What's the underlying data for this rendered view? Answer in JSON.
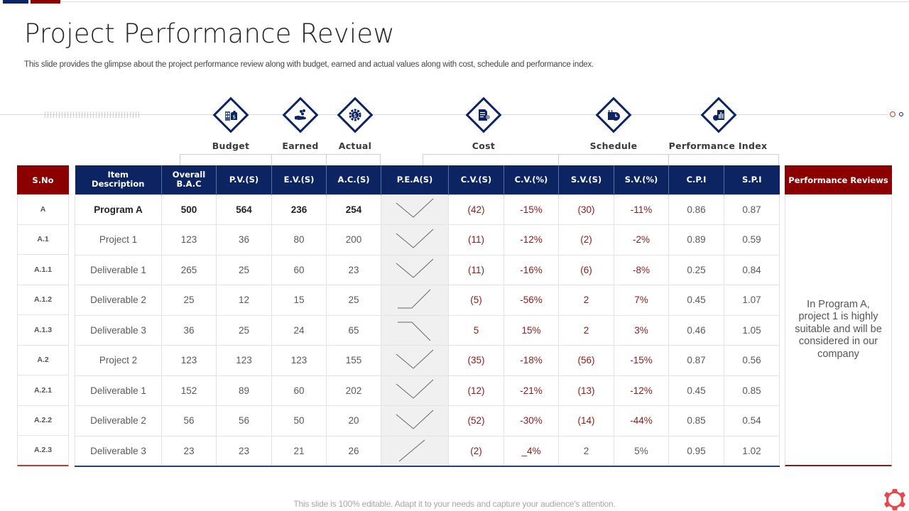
{
  "slide": {
    "title": "Project Performance Review",
    "subtitle": "This slide provides the glimpse about the project performance review along with budget, earned and actual values along with cost, schedule and performance index.",
    "footer": "This slide is 100% editable. Adapt it to your needs and capture your audience's attention."
  },
  "categories": [
    {
      "label": "Budget",
      "icon": "money-bag-building-icon"
    },
    {
      "label": "Earned",
      "icon": "hand-coins-icon"
    },
    {
      "label": "Actual",
      "icon": "dollar-gear-icon"
    },
    {
      "label": "Cost",
      "icon": "document-gear-icon"
    },
    {
      "label": "Schedule",
      "icon": "calendar-clock-icon"
    },
    {
      "label": "Performance Index",
      "icon": "chart-report-icon"
    }
  ],
  "table": {
    "sno_header": "S.No",
    "headers": [
      "Item Description",
      "Overall B.A.C",
      "P.V.(S)",
      "E.V.(S)",
      "A.C.(S)",
      "P.E.A(S)",
      "C.V.(S)",
      "C.V.(%)",
      "S.V.(S)",
      "S.V.(%)",
      "C.P.I",
      "S.P.I"
    ],
    "header_lines": {
      "item_description": [
        "Item",
        "Description"
      ],
      "overall_bac": [
        "Overall",
        "B.A.C"
      ]
    },
    "rows": [
      {
        "sno": "A",
        "item": "Program A",
        "bac": "500",
        "pv": "564",
        "ev": "236",
        "ac": "254",
        "pea_trend": "v-shape",
        "cv": "(42)",
        "cv_pct": "-15%",
        "sv": "(30)",
        "sv_pct": "-11%",
        "cpi": "0.86",
        "spi": "0.87"
      },
      {
        "sno": "A.1",
        "item": "Project 1",
        "bac": "123",
        "pv": "36",
        "ev": "80",
        "ac": "200",
        "pea_trend": "v-shape",
        "cv": "(11)",
        "cv_pct": "-12%",
        "sv": "(2)",
        "sv_pct": "-2%",
        "cpi": "0.89",
        "spi": "0.59"
      },
      {
        "sno": "A.1.1",
        "item": "Deliverable  1",
        "bac": "265",
        "pv": "25",
        "ev": "60",
        "ac": "23",
        "pea_trend": "v-shape",
        "cv": "(11)",
        "cv_pct": "-16%",
        "sv": "(6)",
        "sv_pct": "-8%",
        "cpi": "0.25",
        "spi": "0.84"
      },
      {
        "sno": "A.1.2",
        "item": "Deliverable  2",
        "bac": "25",
        "pv": "12",
        "ev": "15",
        "ac": "25",
        "pea_trend": "flat-then-up",
        "cv": "(5)",
        "cv_pct": "-56%",
        "sv": "2",
        "sv_pct": "7%",
        "cpi": "0.45",
        "spi": "1.07"
      },
      {
        "sno": "A.1.3",
        "item": "Deliverable  3",
        "bac": "36",
        "pv": "25",
        "ev": "24",
        "ac": "65",
        "pea_trend": "flat-then-down",
        "cv": "5",
        "cv_pct": "15%",
        "sv": "2",
        "sv_pct": "3%",
        "cpi": "0.46",
        "spi": "1.05"
      },
      {
        "sno": "A.2",
        "item": "Project 2",
        "bac": "123",
        "pv": "123",
        "ev": "123",
        "ac": "155",
        "pea_trend": "v-shape",
        "cv": "(35)",
        "cv_pct": "-18%",
        "sv": "(56)",
        "sv_pct": "-15%",
        "cpi": "0.87",
        "spi": "0.56"
      },
      {
        "sno": "A.2.1",
        "item": "Deliverable  1",
        "bac": "152",
        "pv": "89",
        "ev": "60",
        "ac": "202",
        "pea_trend": "v-shape",
        "cv": "(12)",
        "cv_pct": "-21%",
        "sv": "(13)",
        "sv_pct": "-12%",
        "cpi": "0.45",
        "spi": "0.85"
      },
      {
        "sno": "A.2.2",
        "item": "Deliverable  2",
        "bac": "56",
        "pv": "56",
        "ev": "50",
        "ac": "20",
        "pea_trend": "v-shape",
        "cv": "(52)",
        "cv_pct": "-30%",
        "sv": "(14)",
        "sv_pct": "-44%",
        "cpi": "0.85",
        "spi": "0.54"
      },
      {
        "sno": "A.2.3",
        "item": "Deliverable  3",
        "bac": "23",
        "pv": "23",
        "ev": "21",
        "ac": "26",
        "pea_trend": "up",
        "cv": "(2)",
        "cv_pct": "_4%",
        "sv": "2",
        "sv_pct": "5%",
        "cpi": "0.95",
        "spi": "1.02"
      }
    ]
  },
  "review": {
    "header": "Performance Reviews",
    "text": "In Program A, project 1 is highly suitable and will be considered in our company"
  },
  "colors": {
    "navy": "#0c2461",
    "maroon": "#8b0000",
    "negative_text": "#8b1a1a",
    "gear_accent": "#e8474c"
  }
}
